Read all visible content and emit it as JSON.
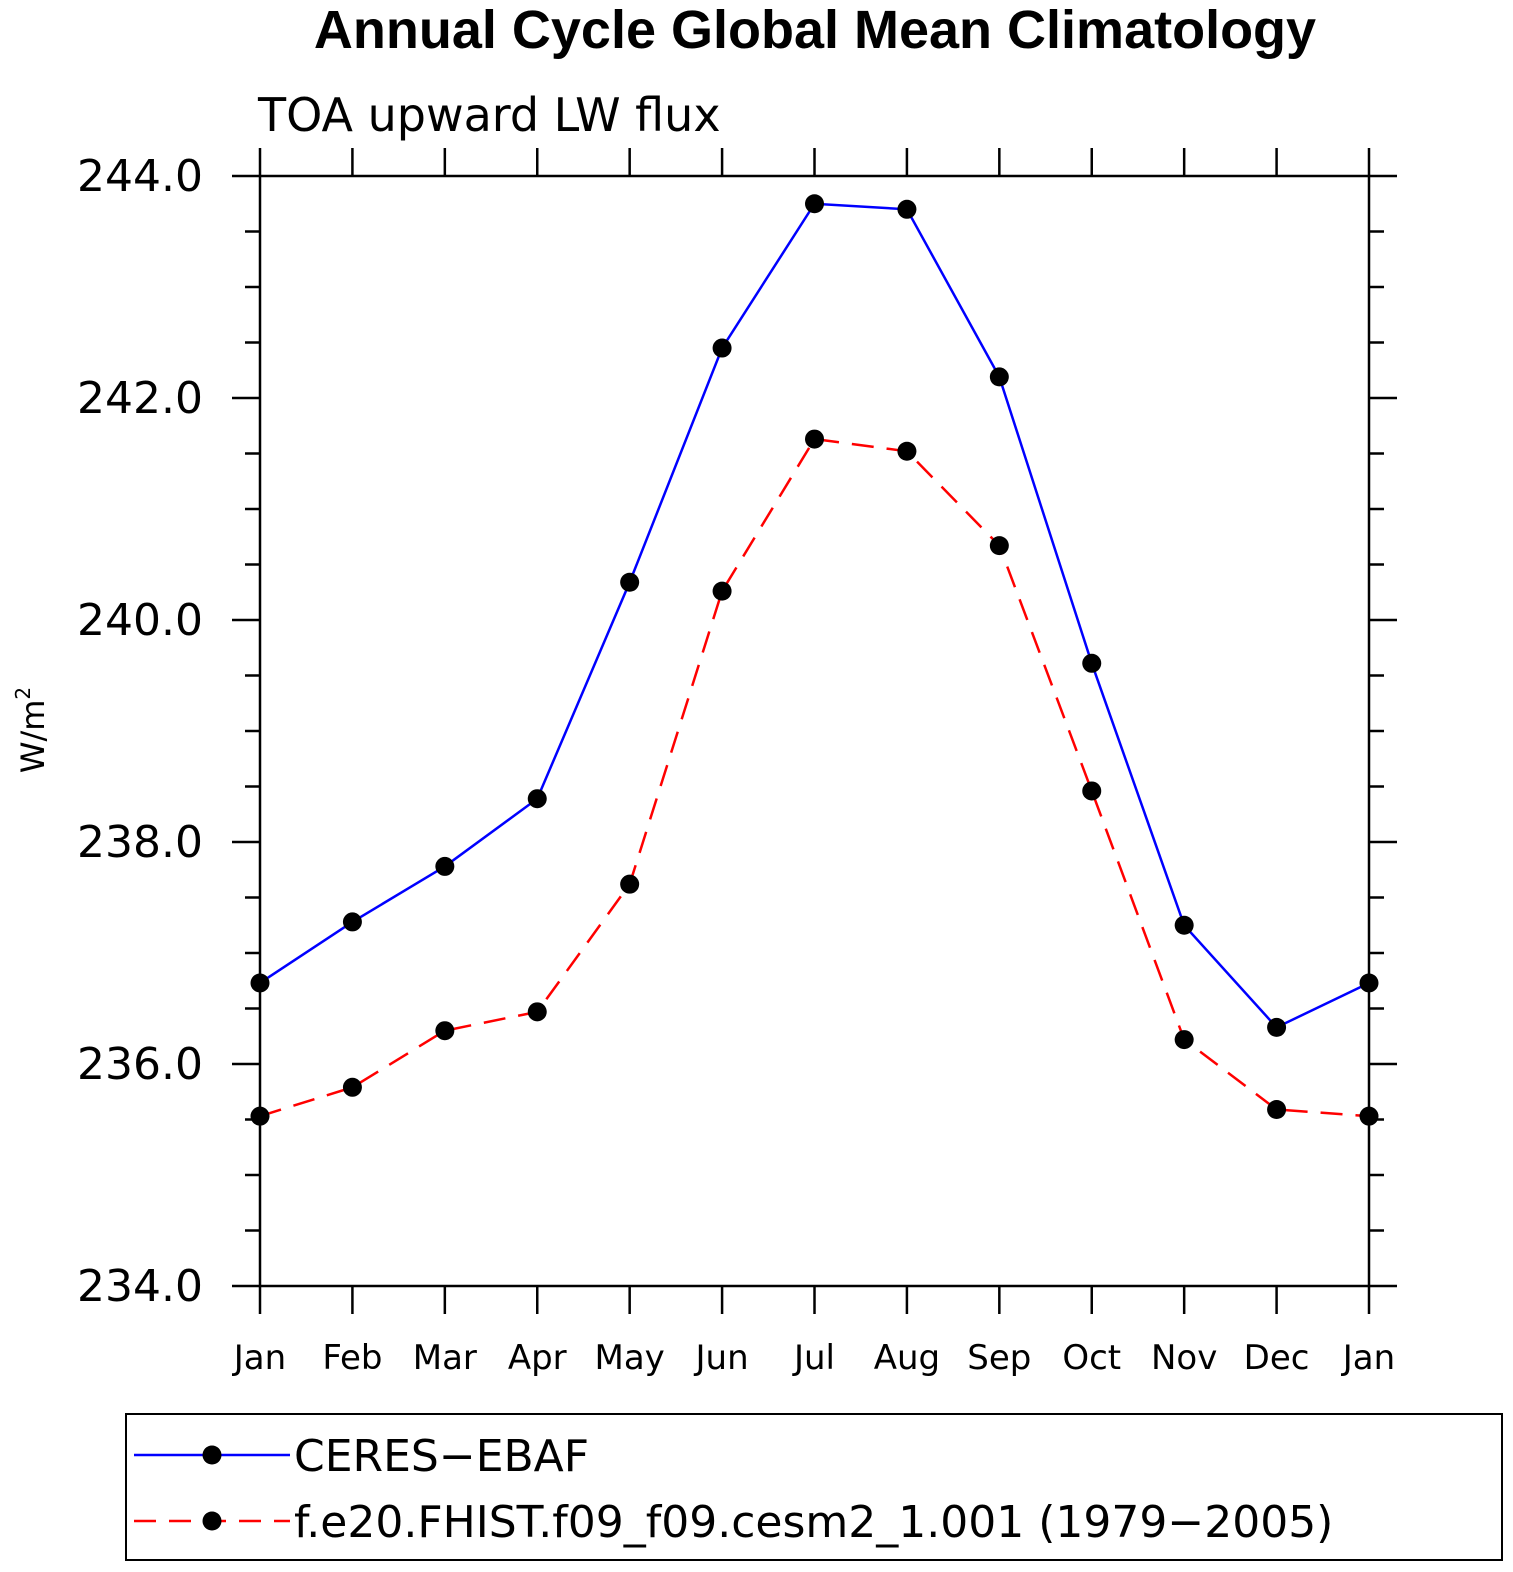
{
  "chart_data": {
    "type": "line",
    "title": "Annual Cycle Global Mean Climatology",
    "subtitle": "TOA upward LW flux",
    "xlabel": "",
    "ylabel_base": "W/m",
    "ylabel_sup": "2",
    "categories": [
      "Jan",
      "Feb",
      "Mar",
      "Apr",
      "May",
      "Jun",
      "Jul",
      "Aug",
      "Sep",
      "Oct",
      "Nov",
      "Dec",
      "Jan"
    ],
    "ylim": [
      234.0,
      244.0
    ],
    "yticks": [
      "234.0",
      "236.0",
      "238.0",
      "240.0",
      "242.0",
      "244.0"
    ],
    "yminor_step": 0.5,
    "grid": false,
    "legend_position": "bottom",
    "series": [
      {
        "name": "CERES−EBAF",
        "color": "#0000ff",
        "dash": "solid",
        "marker_color": "#000000",
        "values": [
          236.73,
          237.28,
          237.78,
          238.39,
          240.34,
          242.45,
          243.75,
          243.7,
          242.19,
          239.61,
          237.25,
          236.33,
          236.73
        ]
      },
      {
        "name": "f.e20.FHIST.f09_f09.cesm2_1.001 (1979−2005)",
        "color": "#ff0000",
        "dash": "dashed",
        "marker_color": "#000000",
        "values": [
          235.53,
          235.79,
          236.3,
          236.47,
          237.62,
          240.26,
          241.63,
          241.52,
          240.67,
          238.46,
          236.22,
          235.59,
          235.53
        ]
      }
    ]
  }
}
